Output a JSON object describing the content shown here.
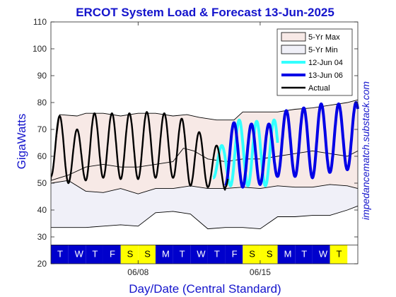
{
  "chart_data": {
    "type": "line",
    "title": "ERCOT System Load & Forecast 13-Jun-2025",
    "xlabel": "Day/Date (Central Standard)",
    "ylabel": "GigaWatts",
    "watermark": "impedancematch.substack.com",
    "ylim": [
      20,
      110
    ],
    "xlim": [
      0,
      17.6
    ],
    "yticks": [
      20,
      30,
      40,
      50,
      60,
      70,
      80,
      90,
      100,
      110
    ],
    "xticks": [
      {
        "x": 5.0,
        "label": "06/08"
      },
      {
        "x": 12.0,
        "label": "06/15"
      }
    ],
    "grid": false,
    "legend_position": "top-right",
    "days": [
      {
        "x": 0,
        "letter": "T",
        "weekend": false
      },
      {
        "x": 1,
        "letter": "W",
        "weekend": false
      },
      {
        "x": 2,
        "letter": "T",
        "weekend": false
      },
      {
        "x": 3,
        "letter": "F",
        "weekend": false
      },
      {
        "x": 4,
        "letter": "S",
        "weekend": true
      },
      {
        "x": 5,
        "letter": "S",
        "weekend": true
      },
      {
        "x": 6,
        "letter": "M",
        "weekend": false
      },
      {
        "x": 7,
        "letter": "T",
        "weekend": false
      },
      {
        "x": 8,
        "letter": "W",
        "weekend": false
      },
      {
        "x": 9,
        "letter": "T",
        "weekend": false
      },
      {
        "x": 10,
        "letter": "F",
        "weekend": false
      },
      {
        "x": 11,
        "letter": "S",
        "weekend": true
      },
      {
        "x": 12,
        "letter": "S",
        "weekend": true
      },
      {
        "x": 13,
        "letter": "M",
        "weekend": false
      },
      {
        "x": 14,
        "letter": "T",
        "weekend": false
      },
      {
        "x": 15,
        "letter": "W",
        "weekend": false
      },
      {
        "x": 16,
        "letter": "T",
        "weekend": true
      }
    ],
    "day_colors": {
      "weekday": "#0000cc",
      "weekend": "#ffff00",
      "weekday_text": "#ffffff",
      "weekend_text": "#000000"
    },
    "series": [
      {
        "name": "5-Yr Max",
        "kind": "band_upper",
        "color": "#000000",
        "fill": "#f7e9e6",
        "x": [
          0,
          0.5,
          1.5,
          2,
          3,
          4,
          5,
          6,
          7,
          7.8,
          8.5,
          9.5,
          10.5,
          11,
          12,
          13,
          14,
          15,
          16,
          17,
          17.6
        ],
        "y": [
          50.5,
          75.5,
          75,
          76,
          76,
          75,
          76,
          76,
          75,
          75.5,
          74.5,
          73.5,
          73.5,
          76.5,
          76.5,
          76.5,
          77.5,
          78,
          79,
          80,
          81
        ]
      },
      {
        "name": "5-Yr Min",
        "kind": "band_lower",
        "color": "#000000",
        "fill": "#f0f0f8",
        "x": [
          0,
          1,
          2,
          3,
          4,
          5,
          6,
          7,
          8,
          9,
          10,
          11,
          12,
          13,
          14,
          15,
          16,
          17,
          17.6
        ],
        "y": [
          33.5,
          33.5,
          33.5,
          34,
          34.5,
          34,
          39,
          39.5,
          38.5,
          33,
          33.5,
          33.5,
          33,
          37.5,
          37.5,
          38,
          38,
          40,
          41.5
        ]
      },
      {
        "name": "",
        "kind": "band_inner_upper",
        "color": "#000000",
        "x": [
          0,
          1,
          2,
          3,
          4,
          5,
          6,
          7,
          7.6,
          8.2,
          9,
          10,
          11,
          12,
          13,
          14,
          15,
          16,
          17,
          17.6
        ],
        "y": [
          51,
          53,
          56,
          57,
          56,
          56,
          57,
          58,
          63,
          62,
          59,
          58,
          59,
          59,
          60,
          61,
          62,
          61,
          60,
          62
        ]
      },
      {
        "name": "",
        "kind": "band_inner_lower",
        "color": "#000000",
        "x": [
          0,
          1,
          2,
          3,
          4,
          5,
          6,
          7,
          8,
          9,
          10,
          11,
          12,
          13,
          14,
          15,
          16,
          17,
          17.6
        ],
        "y": [
          50,
          51,
          47,
          46.5,
          48,
          46,
          48,
          48,
          49,
          48,
          48,
          48.5,
          48,
          49,
          48.5,
          48.5,
          49.5,
          49,
          48
        ]
      },
      {
        "name": "12-Jun 04",
        "kind": "forecast_old",
        "color": "#33ffff",
        "start": 9.3,
        "end": 13.0,
        "peaks": [
          64,
          73.5,
          73,
          73.5
        ],
        "troughs": [
          52,
          49,
          49,
          49
        ]
      },
      {
        "name": "13-Jun 06",
        "kind": "forecast",
        "color": "#0000e6",
        "start": 10.0,
        "end": 17.6,
        "peaks": [
          72.5,
          72,
          72,
          77,
          78,
          79.5,
          79.5,
          80
        ],
        "troughs": [
          49,
          48.5,
          49.5,
          52.5,
          52.5,
          52,
          54,
          55
        ]
      },
      {
        "name": "Actual",
        "kind": "actual",
        "color": "#000000",
        "start": 0,
        "end": 10.15,
        "peaks": [
          75,
          70,
          76,
          76,
          76,
          76.5,
          76,
          74,
          69,
          64
        ],
        "troughs": [
          52.5,
          50,
          51,
          52,
          51.5,
          51.5,
          52,
          52,
          49,
          48.5,
          47.5
        ]
      }
    ],
    "legend": [
      "5-Yr Max",
      "5-Yr Min",
      "12-Jun 04",
      "13-Jun 06",
      "Actual"
    ]
  }
}
